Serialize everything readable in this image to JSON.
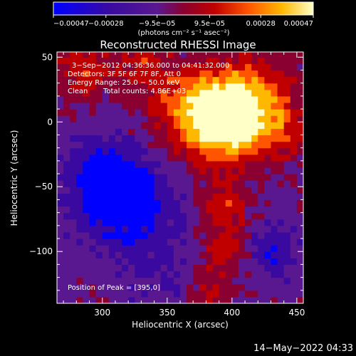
{
  "chart_data": {
    "type": "heatmap",
    "title": "Reconstructed RHESSI Image",
    "xlabel": "Heliocentric X (arcsec)",
    "ylabel": "Heliocentric Y (arcsec)",
    "xlim": [
      265,
      455
    ],
    "ylim": [
      -140,
      54
    ],
    "x_ticks": [
      "300",
      "350",
      "400",
      "450"
    ],
    "x_tick_values": [
      300,
      350,
      400,
      450
    ],
    "y_ticks": [
      "50",
      "0",
      "−50",
      "−100"
    ],
    "y_tick_values": [
      50,
      0,
      -50,
      -100
    ],
    "colorbar": {
      "range": [
        -0.00047,
        0.00047
      ],
      "tick_labels": [
        "−0.00047",
        "−0.00028",
        "−9.5e−05",
        "9.5e−05",
        "0.00028",
        "0.00047"
      ],
      "tick_values": [
        -0.00047,
        -0.00028,
        -9.5e-05,
        9.5e-05,
        0.00028,
        0.00047
      ],
      "unit_label": "(photons cm⁻² s⁻¹ asec⁻²)",
      "colors": [
        "#0000ff",
        "#3a0aa0",
        "#5a1890",
        "#8a0030",
        "#c00000",
        "#ff5500",
        "#ffb800",
        "#ffffc8"
      ]
    },
    "annotations": [
      "3−Sep−2012 04:36:36.000 to 04:41:32.000",
      "Detectors: 3F 5F 6F 7F 8F, Att 0",
      "Energy Range: 25.0 − 50.0 keV",
      "Clean",
      "Total counts: 4.86E+03"
    ],
    "peak_label": "Position of Peak = [395,0]",
    "peak": [
      395,
      0
    ]
  },
  "footer": {
    "timestamp": "14−May−2022 04:33"
  }
}
